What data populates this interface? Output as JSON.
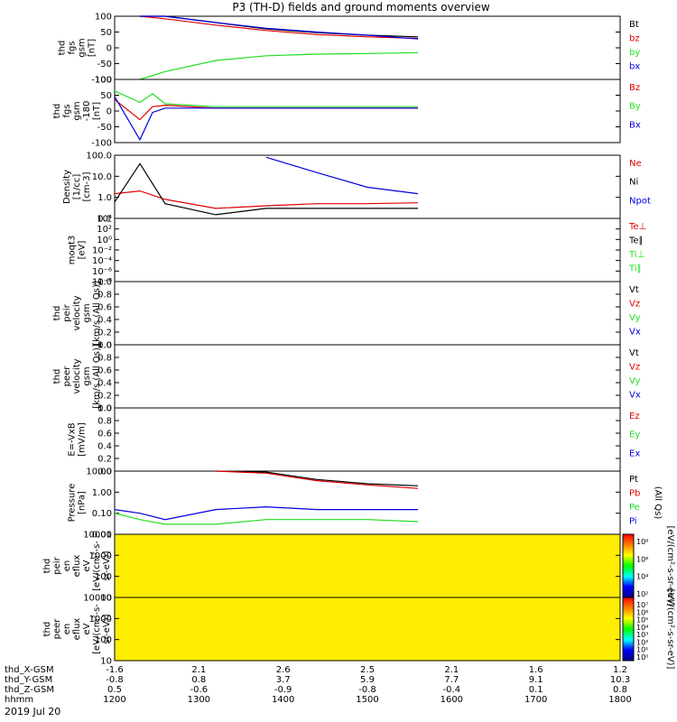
{
  "title": "P3 (TH-D) fields and ground moments overview",
  "date_label": "2019 Jul 20",
  "colors": {
    "black": "#000000",
    "red": "#e00000",
    "green": "#22dd22",
    "blue": "#0000e0",
    "yellow": "#ffee00"
  },
  "chart_data": [
    {
      "type": "line",
      "id": "fgs-gsm",
      "ylabel": [
        "thd",
        "fgs",
        "gsm",
        "[nT]"
      ],
      "ylim": [
        -100,
        100
      ],
      "ticks": [
        "100",
        "50",
        "0",
        "-50",
        "-100"
      ],
      "series": [
        {
          "name": "Bt",
          "color": "black"
        },
        {
          "name": "bz",
          "color": "red"
        },
        {
          "name": "by",
          "color": "green"
        },
        {
          "name": "bx",
          "color": "blue"
        }
      ],
      "samples": {
        "x_hhmm": [
          1230,
          1300,
          1400,
          1500,
          1600,
          1700,
          1800
        ],
        "Bt": [
          110,
          100,
          80,
          60,
          48,
          40,
          35
        ],
        "bz": [
          100,
          92,
          72,
          55,
          42,
          35,
          30
        ],
        "by": [
          -100,
          -75,
          -40,
          -25,
          -20,
          -18,
          -15
        ],
        "bx": [
          110,
          100,
          80,
          62,
          50,
          40,
          28
        ]
      }
    },
    {
      "type": "line",
      "id": "fgs-gsm-180",
      "ylabel": [
        "thd",
        "fgs",
        "gsm",
        "-180",
        "[nT]"
      ],
      "ylim": [
        -120,
        100
      ],
      "ticks": [
        "100",
        "50",
        "0",
        "-50",
        "-100"
      ],
      "series": [
        {
          "name": "Bz",
          "color": "red"
        },
        {
          "name": "By",
          "color": "green"
        },
        {
          "name": "Bx",
          "color": "blue"
        }
      ],
      "samples": {
        "x_hhmm": [
          1200,
          1230,
          1245,
          1300,
          1400,
          1800
        ],
        "Bz": [
          30,
          -40,
          5,
          10,
          0,
          0
        ],
        "By": [
          60,
          20,
          50,
          15,
          5,
          5
        ],
        "Bx": [
          40,
          -110,
          -15,
          0,
          0,
          0
        ]
      }
    },
    {
      "type": "line",
      "id": "density",
      "ylabel": [
        "Density",
        "[1/cc]",
        "[cm-3]"
      ],
      "scale": "log",
      "ticks": [
        "100.0",
        "10.0",
        "1.0",
        "0.1"
      ],
      "series": [
        {
          "name": "Ne",
          "color": "red"
        },
        {
          "name": "Ni",
          "color": "black"
        },
        {
          "name": "Npot",
          "color": "blue"
        }
      ],
      "samples": {
        "x_hhmm": [
          1200,
          1230,
          1300,
          1400,
          1500,
          1600,
          1700,
          1800
        ],
        "Ne": [
          1.5,
          2,
          0.8,
          0.3,
          0.4,
          0.5,
          0.5,
          0.55
        ],
        "Ni": [
          0.6,
          40,
          0.5,
          0.15,
          0.3,
          0.3,
          0.3,
          0.3
        ],
        "Npot": [
          null,
          null,
          null,
          null,
          80,
          15,
          3,
          1.5
        ]
      }
    },
    {
      "type": "line",
      "id": "temperature",
      "ylabel": [
        "moqt3",
        "[eV]"
      ],
      "scale": "log",
      "ticks": [
        "10⁴",
        "10²",
        "10⁰",
        "10⁻²",
        "10⁻⁴",
        "10⁻⁶",
        "10⁻⁸"
      ],
      "series": [
        {
          "name": "Te⊥",
          "color": "red"
        },
        {
          "name": "Te∥",
          "color": "black"
        },
        {
          "name": "Ti⊥",
          "color": "green"
        },
        {
          "name": "Ti∥",
          "color": "green"
        }
      ]
    },
    {
      "type": "line",
      "id": "peir-velocity",
      "ylabel": [
        "thd",
        "peir",
        "velocity",
        "gsm",
        "[km/s (All Qs)]"
      ],
      "ylim": [
        0,
        1
      ],
      "ticks": [
        "1.0",
        "0.8",
        "0.6",
        "0.4",
        "0.2",
        "0.0"
      ],
      "series": [
        {
          "name": "Vt",
          "color": "black"
        },
        {
          "name": "Vz",
          "color": "red"
        },
        {
          "name": "Vy",
          "color": "green"
        },
        {
          "name": "Vx",
          "color": "blue"
        }
      ]
    },
    {
      "type": "line",
      "id": "peer-velocity",
      "ylabel": [
        "thd",
        "peer",
        "velocity",
        "gsm",
        "[km/s (All Qs)]"
      ],
      "ylim": [
        0,
        1
      ],
      "ticks": [
        "1.0",
        "0.8",
        "0.6",
        "0.4",
        "0.2",
        "0.0"
      ],
      "series": [
        {
          "name": "Vt",
          "color": "black"
        },
        {
          "name": "Vz",
          "color": "red"
        },
        {
          "name": "Vy",
          "color": "green"
        },
        {
          "name": "Vx",
          "color": "blue"
        }
      ]
    },
    {
      "type": "line",
      "id": "efield",
      "ylabel": [
        "E=-VxB",
        "[mV/m]"
      ],
      "ylim": [
        0,
        1
      ],
      "ticks": [
        "1.0",
        "0.8",
        "0.6",
        "0.4",
        "0.2",
        "0.0"
      ],
      "series": [
        {
          "name": "Ez",
          "color": "red"
        },
        {
          "name": "Ey",
          "color": "green"
        },
        {
          "name": "Ex",
          "color": "blue"
        }
      ]
    },
    {
      "type": "line",
      "id": "pressure",
      "ylabel": [
        "Pressure",
        "[nPa]"
      ],
      "scale": "log",
      "ticks": [
        "10.00",
        "1.00",
        "0.10",
        "0.01"
      ],
      "series": [
        {
          "name": "Pt",
          "color": "black"
        },
        {
          "name": "Pb",
          "color": "red"
        },
        {
          "name": "Pe",
          "color": "green"
        },
        {
          "name": "Pi",
          "color": "blue"
        }
      ],
      "right_label": "(All Qs)",
      "samples": {
        "x_hhmm": [
          1200,
          1230,
          1300,
          1400,
          1500,
          1600,
          1700,
          1800
        ],
        "Pt": [
          null,
          null,
          null,
          20,
          9,
          4,
          2.5,
          2
        ],
        "Pb": [
          null,
          null,
          null,
          18,
          8,
          3.5,
          2.2,
          1.5
        ],
        "Pe": [
          0.1,
          0.05,
          0.03,
          0.03,
          0.05,
          0.05,
          0.05,
          0.04
        ],
        "Pi": [
          0.15,
          0.1,
          0.05,
          0.15,
          0.2,
          0.15,
          0.15,
          0.15
        ]
      }
    },
    {
      "type": "heatmap",
      "id": "peir-eflux",
      "ylabel": [
        "thd",
        "peir",
        "en",
        "eflux",
        "eV",
        "[eV/(cm²-s-",
        "sr-eV)]"
      ],
      "scale": "log",
      "ticks": [
        "10000",
        "1000",
        "100",
        "10"
      ],
      "colorbar": {
        "label": "[eV/(cm²-s-sr-eV)]",
        "ticks": [
          "10⁸",
          "10⁶",
          "10⁴",
          "10²"
        ]
      }
    },
    {
      "type": "heatmap",
      "id": "peer-eflux",
      "ylabel": [
        "thd",
        "peer",
        "en",
        "eflux",
        "eV",
        "[eV/(cm²-s-",
        "sr-eV)]"
      ],
      "scale": "log",
      "ticks": [
        "10000",
        "1000",
        "100",
        "10"
      ],
      "colorbar": {
        "label": "[eV/(cm²-s-sr-eV)]",
        "ticks": [
          "10⁷",
          "10⁶",
          "10⁵",
          "10⁴",
          "10³",
          "10²",
          "10¹",
          "10⁰"
        ]
      }
    }
  ],
  "x_axis": {
    "rows": [
      {
        "label": "thd_X-GSM",
        "values": [
          "-1.6",
          "2.1",
          "2.6",
          "2.5",
          "2.1",
          "1.6",
          "1.2"
        ]
      },
      {
        "label": "thd_Y-GSM",
        "values": [
          "-0.8",
          "0.8",
          "3.7",
          "5.9",
          "7.7",
          "9.1",
          "10.3"
        ]
      },
      {
        "label": "thd_Z-GSM",
        "values": [
          "0.5",
          "-0.6",
          "-0.9",
          "-0.8",
          "-0.4",
          "0.1",
          "0.8"
        ]
      },
      {
        "label": "hhmm",
        "values": [
          "1200",
          "1300",
          "1400",
          "1500",
          "1600",
          "1700",
          "1800"
        ]
      }
    ]
  }
}
